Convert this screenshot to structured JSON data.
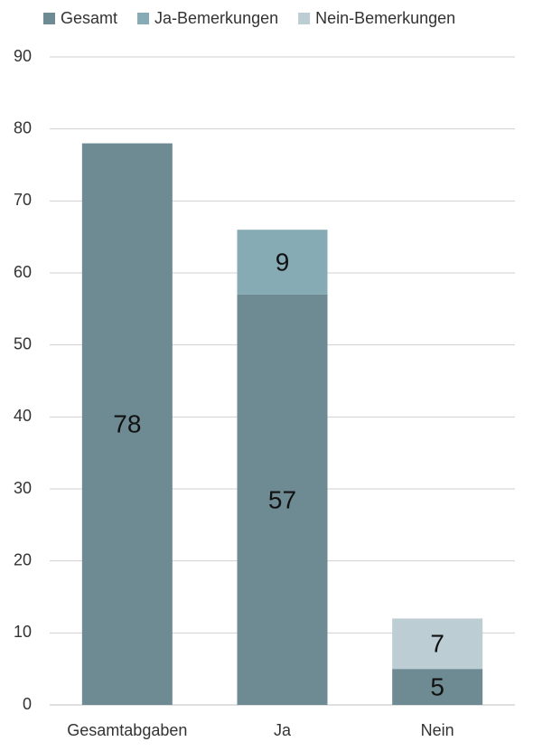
{
  "chart_data": {
    "type": "stacked-bar",
    "categories": [
      "Gesamtabgaben",
      "Ja",
      "Nein"
    ],
    "series": [
      {
        "name": "Gesamt",
        "color": "#6e8b93",
        "values": [
          78,
          57,
          5
        ]
      },
      {
        "name": "Ja-Bemerkungen",
        "color": "#86abb5",
        "values": [
          null,
          9,
          null
        ]
      },
      {
        "name": "Nein-Bemerkungen",
        "color": "#bccdd3",
        "values": [
          null,
          null,
          7
        ]
      }
    ],
    "ylim": [
      0,
      90
    ],
    "yticks": [
      0,
      10,
      20,
      30,
      40,
      50,
      60,
      70,
      80,
      90
    ],
    "grid": true,
    "legend": "top"
  }
}
